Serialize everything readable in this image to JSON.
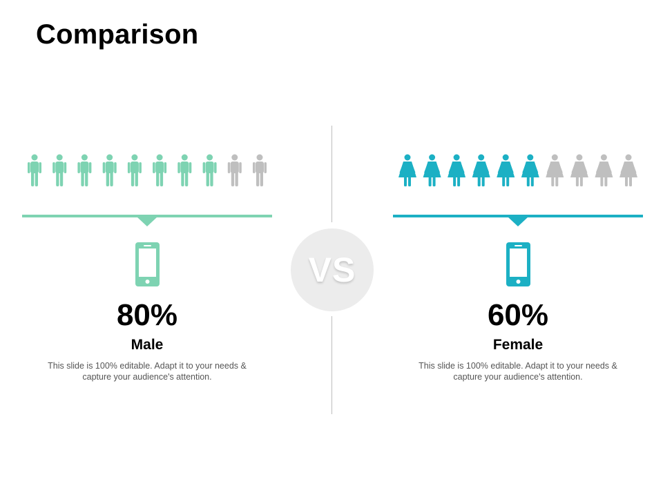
{
  "title": "Comparison",
  "vs_label": "VS",
  "colors": {
    "male_accent": "#7ed3b2",
    "female_accent": "#1cb0c4",
    "inactive": "#bfbfbf",
    "vs_circle": "#ececec"
  },
  "male": {
    "percent_label": "80%",
    "label": "Male",
    "description": "This slide is 100% editable. Adapt it to your needs & capture your audience's attention.",
    "icon": "man-icon",
    "device_icon": "smartphone-icon",
    "total_icons": 10,
    "filled_icons": 8
  },
  "female": {
    "percent_label": "60%",
    "label": "Female",
    "description": "This slide is 100% editable. Adapt it to your needs & capture your audience's attention.",
    "icon": "woman-icon",
    "device_icon": "smartphone-icon",
    "total_icons": 10,
    "filled_icons": 6
  }
}
